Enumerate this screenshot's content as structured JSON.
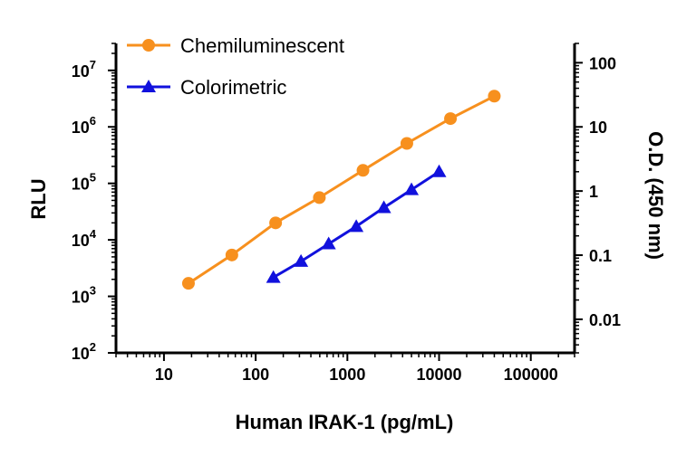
{
  "chart_data": {
    "type": "line",
    "x_scale": "log",
    "xlabel": "Human IRAK-1 (pg/mL)",
    "xlim": [
      3,
      300000
    ],
    "x_ticks": [
      "10",
      "100",
      "1000",
      "10000",
      "100000"
    ],
    "y_left": {
      "label": "RLU",
      "scale": "log",
      "ylim": [
        100,
        30000000
      ],
      "ticks": [
        {
          "base": "10",
          "exp": "2"
        },
        {
          "base": "10",
          "exp": "3"
        },
        {
          "base": "10",
          "exp": "4"
        },
        {
          "base": "10",
          "exp": "5"
        },
        {
          "base": "10",
          "exp": "6"
        },
        {
          "base": "10",
          "exp": "7"
        }
      ]
    },
    "y_right": {
      "label": "O.D. (450 nm)",
      "scale": "log",
      "ylim": [
        0.003,
        200
      ],
      "ticks": [
        "0.01",
        "0.1",
        "1",
        "10",
        "100"
      ]
    },
    "legend_position": "top-left",
    "series": [
      {
        "name": "Chemiluminescent",
        "axis": "left",
        "color": "#F7901E",
        "marker": "circle",
        "x": [
          18.5,
          55,
          165,
          495,
          1480,
          4450,
          13300,
          40000
        ],
        "y": [
          1700,
          5400,
          20000,
          56000,
          170000,
          510000,
          1400000,
          3500000
        ]
      },
      {
        "name": "Colorimetric",
        "axis": "right",
        "color": "#1111DD",
        "marker": "triangle",
        "x": [
          156,
          312,
          625,
          1250,
          2500,
          5000,
          10000
        ],
        "y": [
          0.045,
          0.08,
          0.15,
          0.28,
          0.55,
          1.05,
          2.0
        ]
      }
    ]
  }
}
